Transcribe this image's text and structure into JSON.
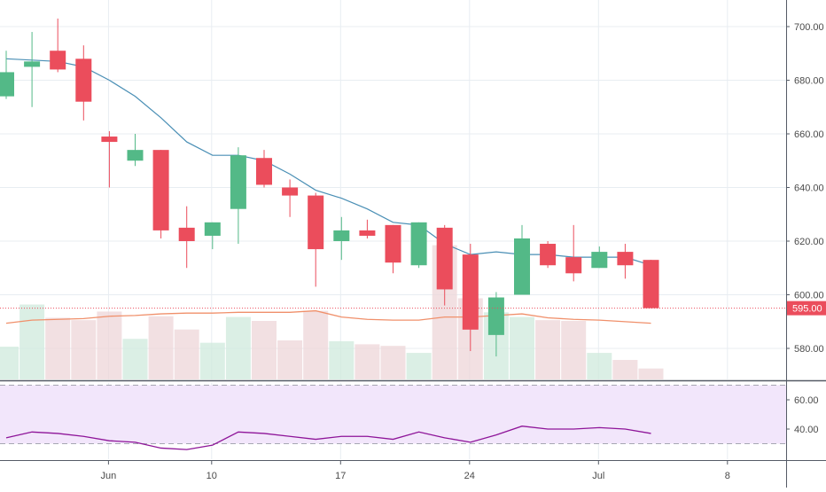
{
  "chart_data": {
    "type": "candlestick",
    "price_pane": {
      "y_ticks": [
        "700.00",
        "680.00",
        "660.00",
        "640.00",
        "620.00",
        "600.00",
        "580.00"
      ],
      "ylim": [
        570,
        705
      ],
      "last_price_label": "595.00",
      "last_price": 595,
      "candles": [
        {
          "o": 674,
          "h": 691,
          "l": 673,
          "c": 683
        },
        {
          "o": 685,
          "h": 698,
          "l": 670,
          "c": 687
        },
        {
          "o": 691,
          "h": 703,
          "l": 683,
          "c": 684
        },
        {
          "o": 688,
          "h": 693,
          "l": 665,
          "c": 672
        },
        {
          "o": 659,
          "h": 661,
          "l": 640,
          "c": 657
        },
        {
          "o": 650,
          "h": 660,
          "l": 648,
          "c": 654
        },
        {
          "o": 654,
          "h": 654,
          "l": 621,
          "c": 624
        },
        {
          "o": 625,
          "h": 633,
          "l": 610,
          "c": 620
        },
        {
          "o": 622,
          "h": 627,
          "l": 617,
          "c": 627
        },
        {
          "o": 632,
          "h": 655,
          "l": 619,
          "c": 652
        },
        {
          "o": 651,
          "h": 654,
          "l": 640,
          "c": 641
        },
        {
          "o": 640,
          "h": 643,
          "l": 629,
          "c": 637
        },
        {
          "o": 637,
          "h": 638,
          "l": 603,
          "c": 617
        },
        {
          "o": 620,
          "h": 629,
          "l": 613,
          "c": 624
        },
        {
          "o": 624,
          "h": 628,
          "l": 621,
          "c": 622
        },
        {
          "o": 626,
          "h": 626,
          "l": 608,
          "c": 612
        },
        {
          "o": 611,
          "h": 627,
          "l": 610,
          "c": 627
        },
        {
          "o": 625,
          "h": 626,
          "l": 596,
          "c": 602
        },
        {
          "o": 615,
          "h": 619,
          "l": 579,
          "c": 587
        },
        {
          "o": 585,
          "h": 601,
          "l": 577,
          "c": 599
        },
        {
          "o": 600,
          "h": 626,
          "l": 600,
          "c": 621
        },
        {
          "o": 619,
          "h": 620,
          "l": 610,
          "c": 611
        },
        {
          "o": 614,
          "h": 626,
          "l": 605,
          "c": 608
        },
        {
          "o": 610,
          "h": 618,
          "l": 610,
          "c": 616
        },
        {
          "o": 616,
          "h": 619,
          "l": 606,
          "c": 611
        },
        {
          "o": 613,
          "h": 613,
          "l": 595,
          "c": 595
        }
      ],
      "moving_average": [
        688,
        687.5,
        687,
        685,
        680,
        674,
        666,
        657,
        652,
        652,
        650,
        645,
        639,
        636,
        632,
        627,
        626,
        619,
        615,
        616,
        615,
        615,
        614,
        614,
        614,
        611
      ],
      "volume": [
        0.42,
        0.96,
        0.79,
        0.76,
        0.87,
        0.52,
        0.81,
        0.64,
        0.47,
        0.8,
        0.75,
        0.5,
        0.88,
        0.49,
        0.45,
        0.43,
        0.34,
        1.72,
        1.04,
        0.86,
        0.8,
        0.76,
        0.75,
        0.34,
        0.25,
        0.14
      ],
      "volume_average": [
        0.72,
        0.76,
        0.77,
        0.78,
        0.81,
        0.82,
        0.84,
        0.85,
        0.85,
        0.86,
        0.86,
        0.86,
        0.88,
        0.8,
        0.77,
        0.76,
        0.76,
        0.8,
        0.8,
        0.82,
        0.84,
        0.79,
        0.77,
        0.76,
        0.74,
        0.72
      ]
    },
    "rsi_pane": {
      "y_ticks": [
        "60.00",
        "40.00"
      ],
      "ylim": [
        22,
        72
      ],
      "bands": [
        70,
        30
      ],
      "values": [
        34,
        38,
        37,
        35,
        32,
        31,
        27,
        26,
        29,
        38,
        37,
        35,
        33,
        35,
        35,
        33,
        38,
        34,
        31,
        36,
        42,
        40,
        40,
        41,
        40,
        37
      ]
    },
    "x_ticks": [
      {
        "label": "Jun",
        "index": 4
      },
      {
        "label": "10",
        "index": 8
      },
      {
        "label": "17",
        "index": 13
      },
      {
        "label": "24",
        "index": 18
      },
      {
        "label": "Jul",
        "index": 23
      },
      {
        "label": "8",
        "index": 28
      }
    ],
    "colors": {
      "up": "#53b987",
      "down": "#eb4d5c",
      "moving_average": "#4a8fb5",
      "volume_average": "#f0906b",
      "rsi_line": "#8e1599",
      "rsi_band_fill": "#f2e6fb",
      "last_price": "#eb4d5c"
    }
  }
}
